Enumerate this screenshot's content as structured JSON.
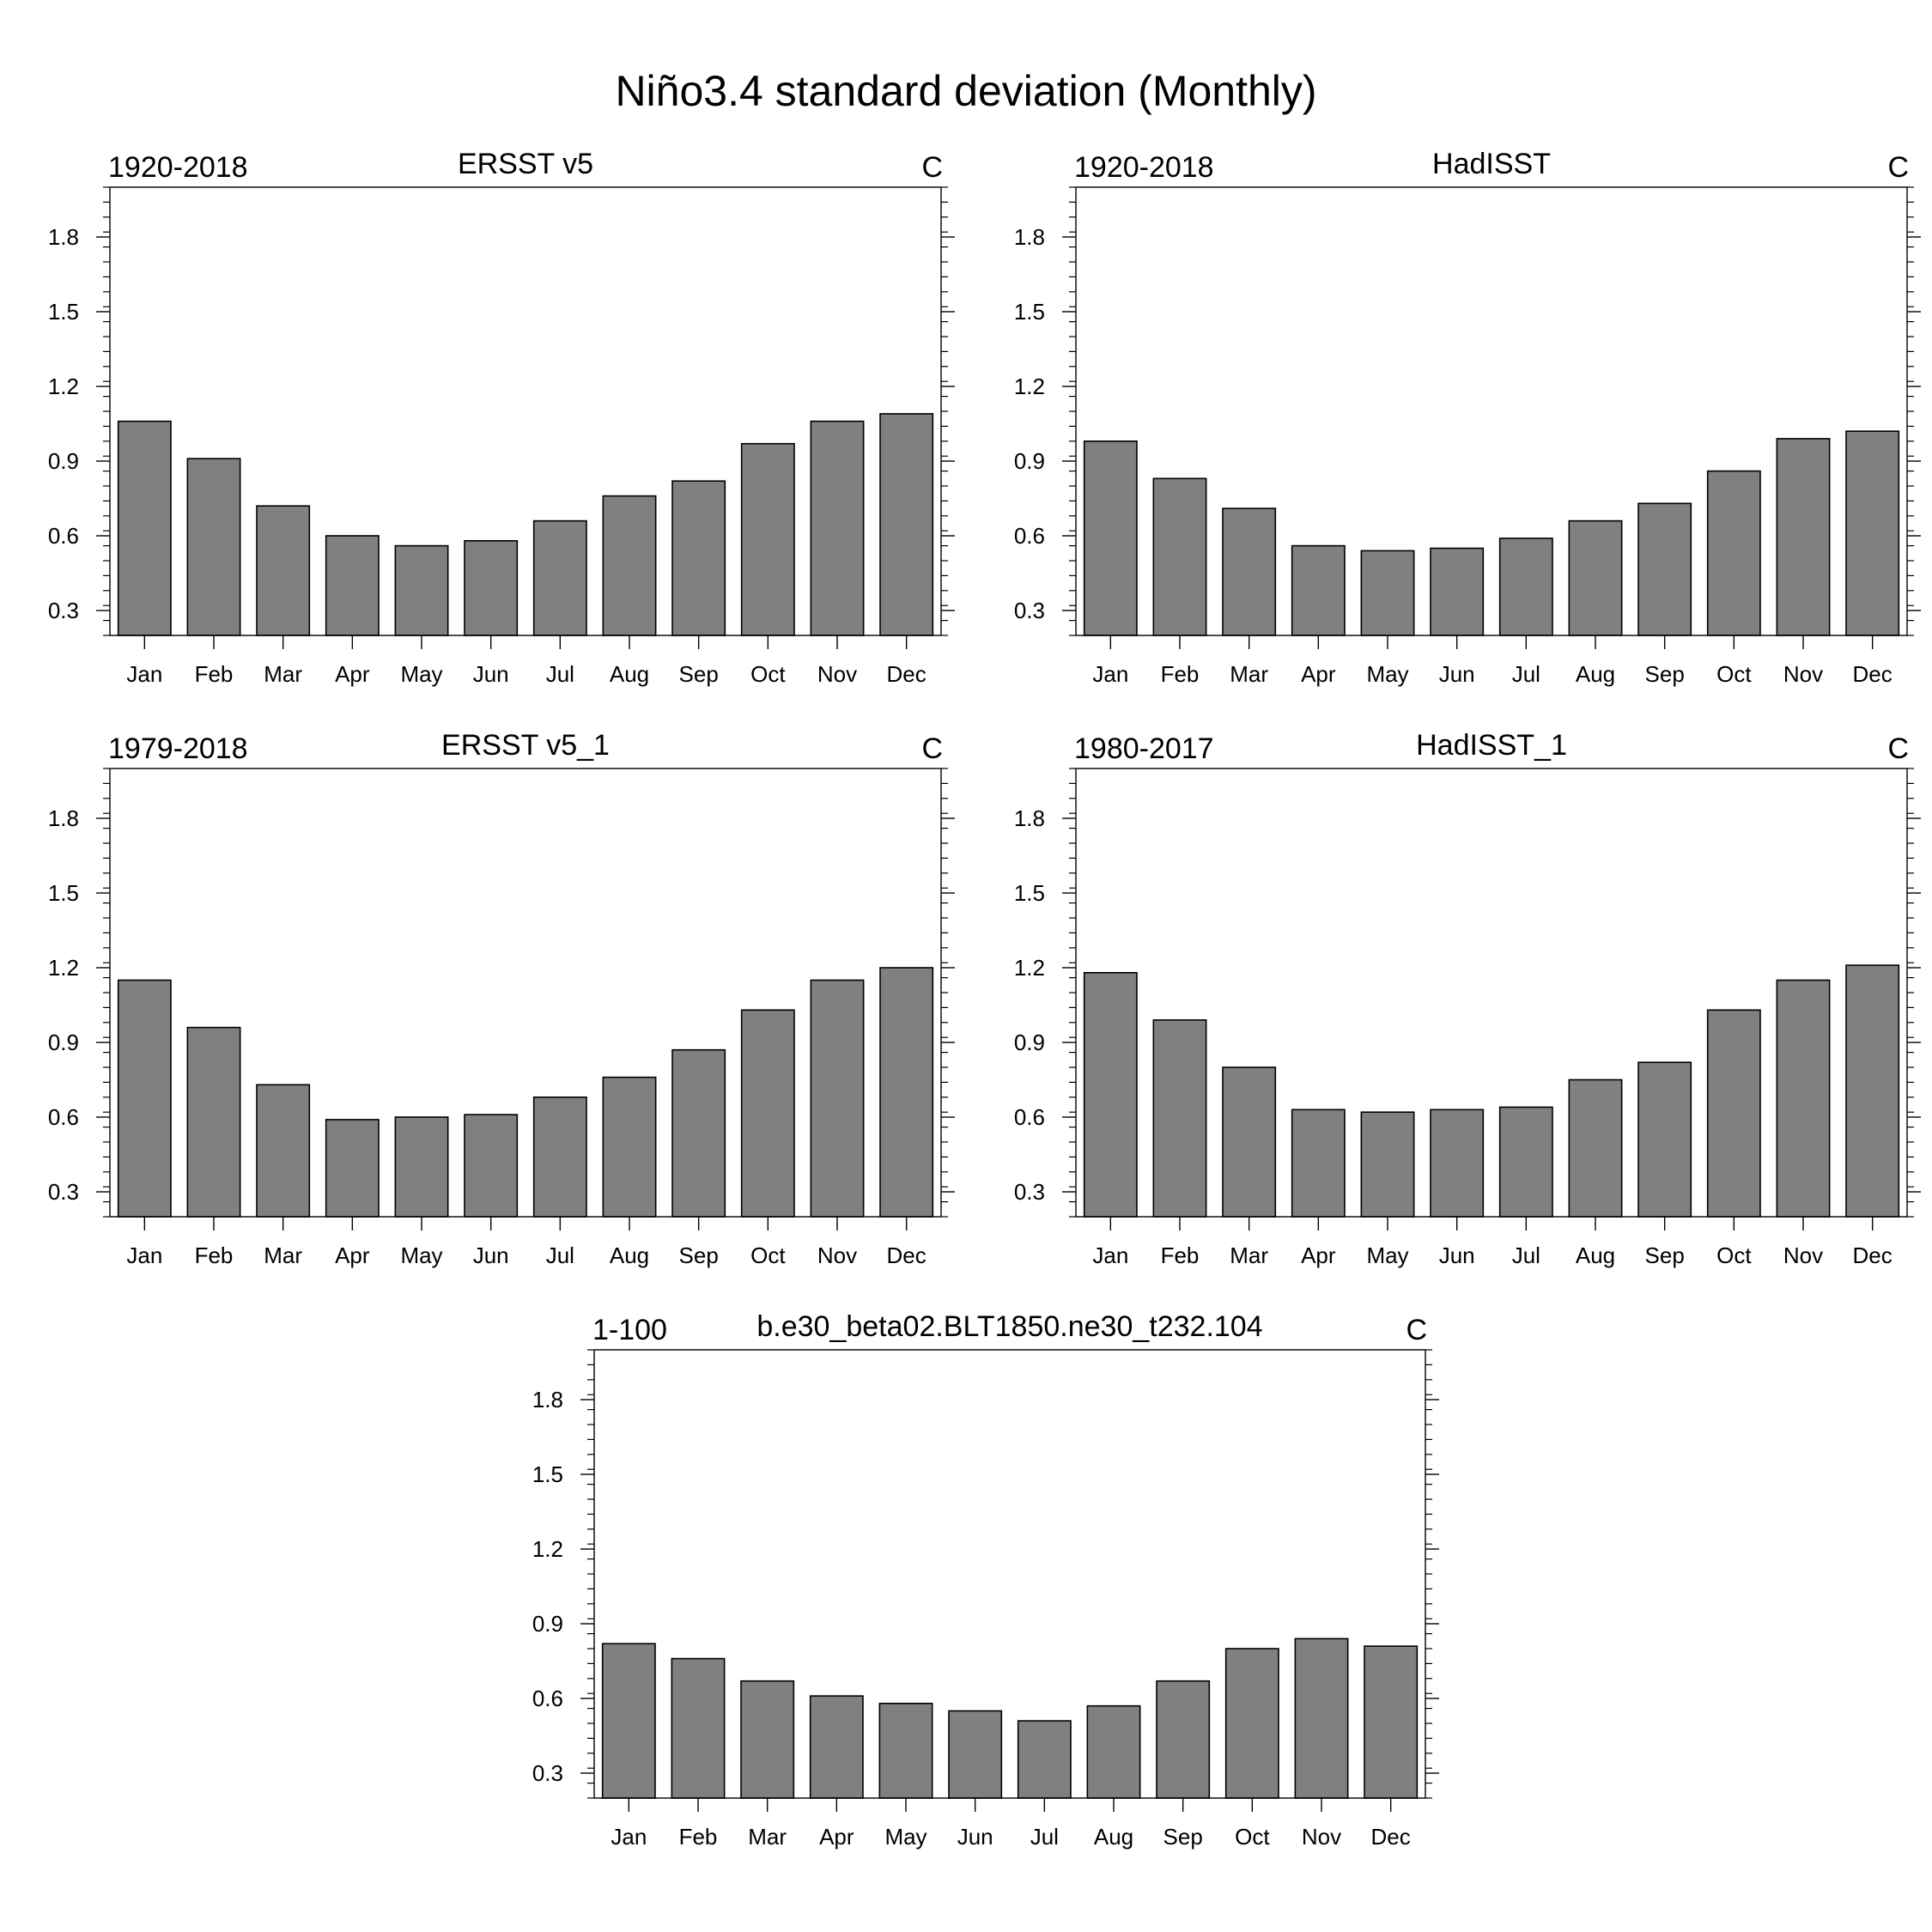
{
  "figure_title": "Niño3.4 standard deviation (Monthly)",
  "colors": {
    "bar_fill": "#808080",
    "bar_stroke": "#000000",
    "axis": "#000000",
    "background": "#ffffff"
  },
  "chart_data": [
    {
      "type": "bar",
      "left_label": "1920-2018",
      "title": "ERSST v5",
      "right_label": "C",
      "categories": [
        "Jan",
        "Feb",
        "Mar",
        "Apr",
        "May",
        "Jun",
        "Jul",
        "Aug",
        "Sep",
        "Oct",
        "Nov",
        "Dec"
      ],
      "values": [
        1.06,
        0.91,
        0.72,
        0.6,
        0.56,
        0.58,
        0.66,
        0.76,
        0.82,
        0.97,
        1.06,
        1.09
      ],
      "ylim": [
        0.2,
        2.0
      ],
      "yticks": [
        0.3,
        0.6,
        0.9,
        1.2,
        1.5,
        1.8
      ],
      "ytick_labels": [
        "0.3",
        "0.6",
        "0.9",
        "1.2",
        "1.5",
        "1.8"
      ]
    },
    {
      "type": "bar",
      "left_label": "1920-2018",
      "title": "HadISST",
      "right_label": "C",
      "categories": [
        "Jan",
        "Feb",
        "Mar",
        "Apr",
        "May",
        "Jun",
        "Jul",
        "Aug",
        "Sep",
        "Oct",
        "Nov",
        "Dec"
      ],
      "values": [
        0.98,
        0.83,
        0.71,
        0.56,
        0.54,
        0.55,
        0.59,
        0.66,
        0.73,
        0.86,
        0.99,
        1.02
      ],
      "ylim": [
        0.2,
        2.0
      ],
      "yticks": [
        0.3,
        0.6,
        0.9,
        1.2,
        1.5,
        1.8
      ],
      "ytick_labels": [
        "0.3",
        "0.6",
        "0.9",
        "1.2",
        "1.5",
        "1.8"
      ]
    },
    {
      "type": "bar",
      "left_label": "1979-2018",
      "title": "ERSST v5_1",
      "right_label": "C",
      "categories": [
        "Jan",
        "Feb",
        "Mar",
        "Apr",
        "May",
        "Jun",
        "Jul",
        "Aug",
        "Sep",
        "Oct",
        "Nov",
        "Dec"
      ],
      "values": [
        1.15,
        0.96,
        0.73,
        0.59,
        0.6,
        0.61,
        0.68,
        0.76,
        0.87,
        1.03,
        1.15,
        1.2
      ],
      "ylim": [
        0.2,
        2.0
      ],
      "yticks": [
        0.3,
        0.6,
        0.9,
        1.2,
        1.5,
        1.8
      ],
      "ytick_labels": [
        "0.3",
        "0.6",
        "0.9",
        "1.2",
        "1.5",
        "1.8"
      ]
    },
    {
      "type": "bar",
      "left_label": "1980-2017",
      "title": "HadISST_1",
      "right_label": "C",
      "categories": [
        "Jan",
        "Feb",
        "Mar",
        "Apr",
        "May",
        "Jun",
        "Jul",
        "Aug",
        "Sep",
        "Oct",
        "Nov",
        "Dec"
      ],
      "values": [
        1.18,
        0.99,
        0.8,
        0.63,
        0.62,
        0.63,
        0.64,
        0.75,
        0.82,
        1.03,
        1.15,
        1.21
      ],
      "ylim": [
        0.2,
        2.0
      ],
      "yticks": [
        0.3,
        0.6,
        0.9,
        1.2,
        1.5,
        1.8
      ],
      "ytick_labels": [
        "0.3",
        "0.6",
        "0.9",
        "1.2",
        "1.5",
        "1.8"
      ]
    },
    {
      "type": "bar",
      "left_label": "1-100",
      "title": "b.e30_beta02.BLT1850.ne30_t232.104",
      "right_label": "C",
      "categories": [
        "Jan",
        "Feb",
        "Mar",
        "Apr",
        "May",
        "Jun",
        "Jul",
        "Aug",
        "Sep",
        "Oct",
        "Nov",
        "Dec"
      ],
      "values": [
        0.82,
        0.76,
        0.67,
        0.61,
        0.58,
        0.55,
        0.51,
        0.57,
        0.67,
        0.8,
        0.84,
        0.81
      ],
      "ylim": [
        0.2,
        2.0
      ],
      "yticks": [
        0.3,
        0.6,
        0.9,
        1.2,
        1.5,
        1.8
      ],
      "ytick_labels": [
        "0.3",
        "0.6",
        "0.9",
        "1.2",
        "1.5",
        "1.8"
      ]
    }
  ]
}
